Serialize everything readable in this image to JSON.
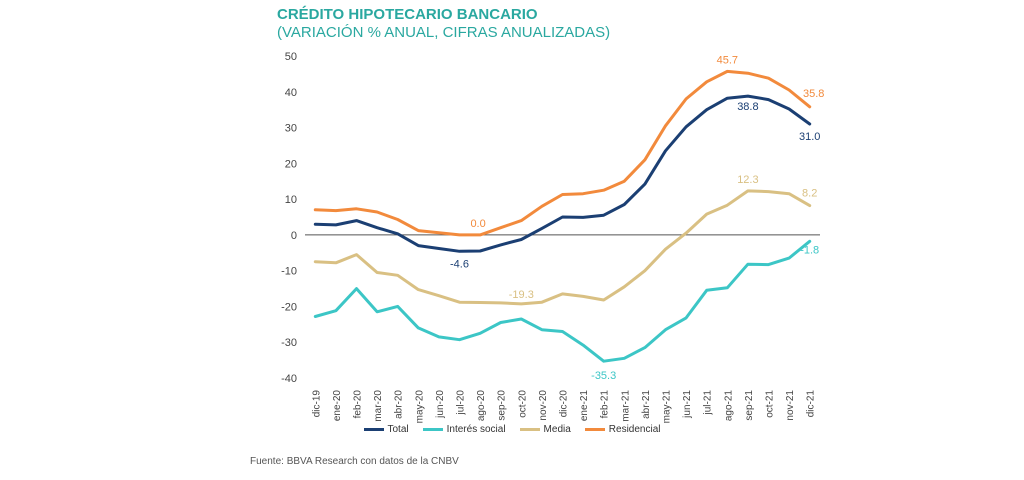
{
  "header": {
    "title": "CRÉDITO HIPOTECARIO BANCARIO",
    "subtitle": "(VARIACIÓN % ANUAL, CIFRAS ANUALIZADAS)"
  },
  "footer": {
    "source": "Fuente: BBVA Research con datos de la CNBV"
  },
  "chart_data": {
    "type": "line",
    "title": "CRÉDITO HIPOTECARIO BANCARIO",
    "subtitle": "(VARIACIÓN % ANUAL, CIFRAS ANUALIZADAS)",
    "xlabel": "",
    "ylabel": "",
    "ylim": [
      -40,
      50
    ],
    "yticks": [
      50,
      40,
      30,
      20,
      10,
      0,
      -10,
      -20,
      -30,
      -40
    ],
    "legend_position": "bottom",
    "categories": [
      "dic-19",
      "ene-20",
      "feb-20",
      "mar-20",
      "abr-20",
      "may-20",
      "jun-20",
      "jul-20",
      "ago-20",
      "sep-20",
      "oct-20",
      "nov-20",
      "dic-20",
      "ene-21",
      "feb-21",
      "mar-21",
      "abr-21",
      "may-21",
      "jun-21",
      "jul-21",
      "ago-21",
      "sep-21",
      "oct-21",
      "nov-21",
      "dic-21"
    ],
    "series": [
      {
        "name": "Total",
        "color": "#1B3F73",
        "values": [
          3.0,
          2.8,
          4.0,
          2.0,
          0.3,
          -3.0,
          -3.8,
          -4.6,
          -4.5,
          -2.8,
          -1.3,
          1.8,
          5.0,
          4.9,
          5.5,
          8.5,
          14.2,
          23.5,
          30.2,
          35.0,
          38.2,
          38.8,
          37.8,
          35.2,
          31.0
        ],
        "labels": [
          {
            "index": 7,
            "text": "-4.6"
          },
          {
            "index": 21,
            "text": "38.8"
          },
          {
            "index": 24,
            "text": "31.0"
          }
        ]
      },
      {
        "name": "Interés social",
        "color": "#3CC6C6",
        "values": [
          -22.8,
          -21.2,
          -15.0,
          -21.5,
          -20.0,
          -26.0,
          -28.5,
          -29.3,
          -27.5,
          -24.5,
          -23.5,
          -26.5,
          -27.0,
          -30.8,
          -35.3,
          -34.5,
          -31.5,
          -26.5,
          -23.2,
          -15.5,
          -14.8,
          -8.2,
          -8.3,
          -6.5,
          -1.8
        ],
        "labels": [
          {
            "index": 14,
            "text": "-35.3"
          },
          {
            "index": 24,
            "text": "-1.8"
          }
        ]
      },
      {
        "name": "Media",
        "color": "#D9C083",
        "values": [
          -7.5,
          -7.8,
          -5.5,
          -10.5,
          -11.3,
          -15.3,
          -17.0,
          -18.8,
          -18.9,
          -19.0,
          -19.3,
          -18.8,
          -16.5,
          -17.2,
          -18.2,
          -14.5,
          -10.0,
          -4.0,
          0.5,
          5.8,
          8.3,
          12.3,
          12.1,
          11.5,
          8.2
        ],
        "labels": [
          {
            "index": 10,
            "text": "-19.3"
          },
          {
            "index": 21,
            "text": "12.3"
          },
          {
            "index": 24,
            "text": "8.2"
          }
        ]
      },
      {
        "name": "Residencial",
        "color": "#F28A3C",
        "values": [
          7.0,
          6.8,
          7.3,
          6.4,
          4.3,
          1.2,
          0.6,
          0.0,
          0.0,
          2.0,
          4.0,
          8.0,
          11.3,
          11.5,
          12.5,
          15.0,
          21.0,
          30.5,
          38.0,
          42.8,
          45.7,
          45.2,
          43.8,
          40.5,
          35.8
        ],
        "labels": [
          {
            "index": 8,
            "text": "0.0"
          },
          {
            "index": 20,
            "text": "45.7"
          },
          {
            "index": 24,
            "text": "35.8"
          }
        ]
      }
    ]
  }
}
